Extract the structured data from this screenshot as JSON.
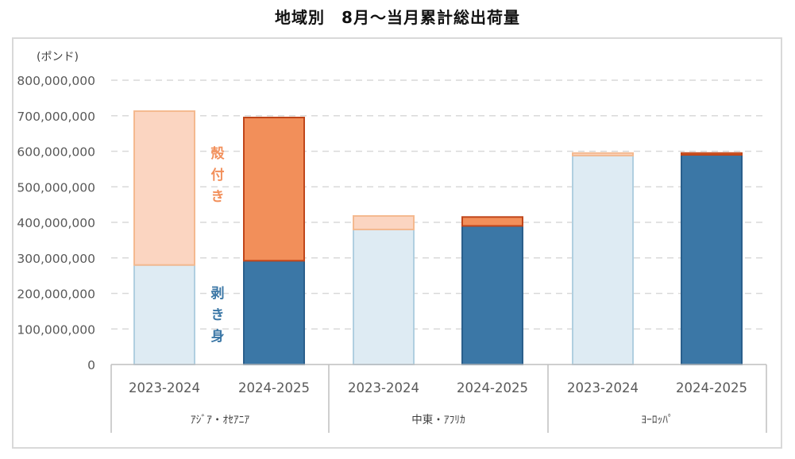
{
  "title": "地域別　8月～当月累計総出荷量",
  "unit_label": "(ポンド)",
  "colors": {
    "peeled_prev": "#deebf3",
    "peeled_prev_edge": "#b0cfe0",
    "peeled_curr": "#3b77a6",
    "peeled_curr_edge": "#2a5f8c",
    "shell_prev": "#fbd5c1",
    "shell_prev_edge": "#f4b98f",
    "shell_curr": "#f28f5a",
    "shell_curr_edge": "#c0461a",
    "label_shell": "#f28f5a",
    "label_peeled": "#3b77a6",
    "grid": "#d9d9d9",
    "axis_text": "#595959"
  },
  "annotations": {
    "shell_on": [
      "殻",
      "付",
      "き"
    ],
    "peeled": [
      "剥",
      "き",
      "身"
    ]
  },
  "chart_data": {
    "type": "bar",
    "stacked": true,
    "ylim": [
      0,
      800000000
    ],
    "yticks": [
      0,
      100000000,
      200000000,
      300000000,
      400000000,
      500000000,
      600000000,
      700000000,
      800000000
    ],
    "ytick_labels": [
      "0",
      "100,000,000",
      "200,000,000",
      "300,000,000",
      "400,000,000",
      "500,000,000",
      "600,000,000",
      "700,000,000",
      "800,000,000"
    ],
    "grid": true,
    "groups": [
      {
        "name": "ｱｼﾞｱ・ｵｾｱﾆｱ",
        "bars": [
          {
            "period": "2023-2024",
            "peeled": 280000000,
            "shell_on": 433000000
          },
          {
            "period": "2024-2025",
            "peeled": 292000000,
            "shell_on": 403000000
          }
        ]
      },
      {
        "name": "中東・ｱﾌﾘｶ",
        "bars": [
          {
            "period": "2023-2024",
            "peeled": 380000000,
            "shell_on": 38000000
          },
          {
            "period": "2024-2025",
            "peeled": 390000000,
            "shell_on": 25000000
          }
        ]
      },
      {
        "name": "ﾖｰﾛｯﾊﾟ",
        "bars": [
          {
            "period": "2023-2024",
            "peeled": 588000000,
            "shell_on": 7000000
          },
          {
            "period": "2024-2025",
            "peeled": 590000000,
            "shell_on": 5000000
          }
        ]
      }
    ]
  }
}
